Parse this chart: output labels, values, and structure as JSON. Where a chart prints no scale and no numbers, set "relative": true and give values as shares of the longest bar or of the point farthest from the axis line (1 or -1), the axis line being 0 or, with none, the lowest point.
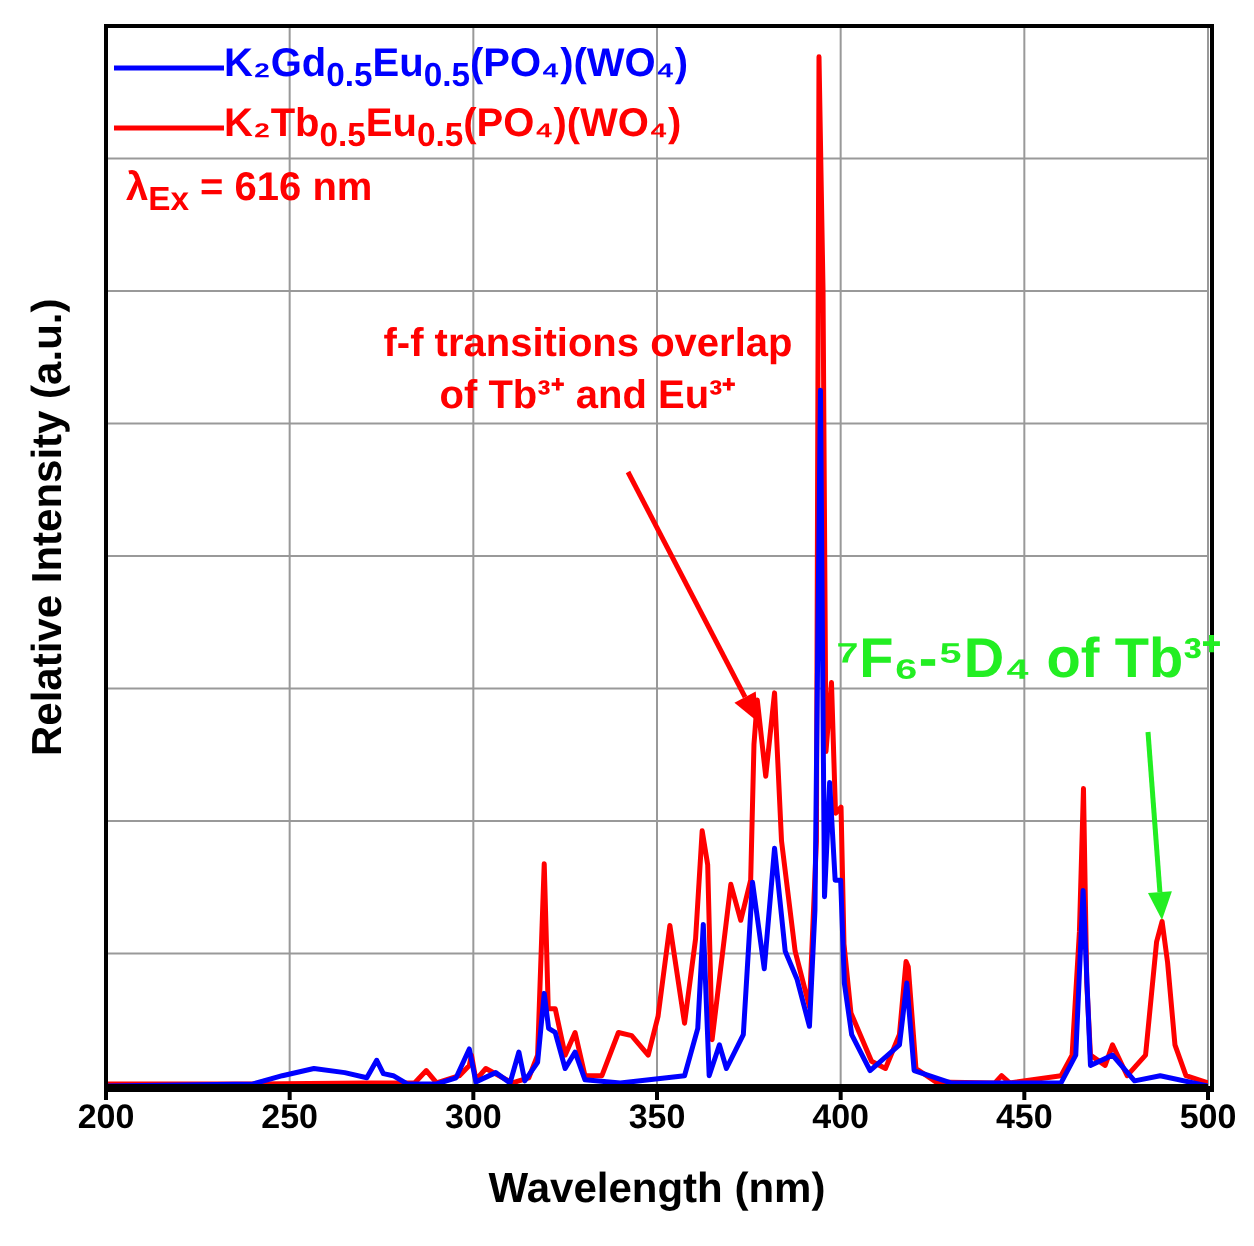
{
  "chart_data": {
    "type": "line",
    "xlabel": "Wavelength (nm)",
    "ylabel": "Relative Intensity (a.u.)",
    "relative": true,
    "xlim": [
      200,
      500
    ],
    "xticks": [
      200,
      250,
      300,
      350,
      400,
      450,
      500
    ],
    "grid": true,
    "legend": "top left",
    "marker": "none",
    "line_style": "solid",
    "series": [
      {
        "name": "K₂Gd$_{0.5}$Eu$_{0.5}$(PO₄)(WO₄)",
        "color": "#0000ff",
        "x": [
          200,
          240,
          248,
          256.6,
          265,
          271,
          273.7,
          275.5,
          278.2,
          282,
          290,
          295.3,
          298.9,
          300.7,
          306.1,
          310,
          312.4,
          314,
          317.5,
          319.3,
          320.5,
          322.3,
          325,
          327.7,
          330.4,
          340,
          357.5,
          361.1,
          362.6,
          364.2,
          367,
          368.9,
          373.5,
          376,
          379.2,
          382,
          384.9,
          388.1,
          391.5,
          393,
          394.5,
          395.6,
          397,
          398.5,
          400,
          401,
          403,
          408,
          416,
          418,
          420,
          430,
          460,
          464,
          466,
          468,
          474,
          480,
          487,
          500
        ],
        "values": [
          0,
          0.002,
          0.01,
          0.017,
          0.013,
          0.008,
          0.025,
          0.012,
          0.01,
          0.002,
          0.002,
          0.008,
          0.036,
          0.004,
          0.013,
          0.003,
          0.033,
          0.005,
          0.023,
          0.09,
          0.056,
          0.052,
          0.017,
          0.033,
          0.006,
          0.003,
          0.01,
          0.056,
          0.157,
          0.01,
          0.04,
          0.017,
          0.05,
          0.198,
          0.114,
          0.231,
          0.131,
          0.104,
          0.058,
          0.171,
          0.676,
          0.184,
          0.295,
          0.2,
          0.2,
          0.1,
          0.05,
          0.015,
          0.04,
          0.1,
          0.015,
          0.003,
          0.003,
          0.03,
          0.19,
          0.02,
          0.03,
          0.005,
          0.01,
          0
        ]
      },
      {
        "name": "K₂Tb$_{0.5}$Eu$_{0.5}$(PO₄)(WO₄)",
        "color": "#ff0000",
        "x": [
          200,
          240,
          270,
          284,
          287.2,
          290,
          296.2,
          298.9,
          299.5,
          300.7,
          303.4,
          310.6,
          315.1,
          317.5,
          319.3,
          320.4,
          322.3,
          325,
          327.7,
          330.4,
          335,
          339.5,
          343.1,
          347.6,
          350.3,
          353.5,
          357.5,
          360.5,
          362.3,
          363.8,
          365,
          370.1,
          372.8,
          375.5,
          376.4,
          377.3,
          379.6,
          382,
          383.9,
          387.6,
          391.5,
          393.4,
          394.1,
          395.2,
          396,
          397.5,
          398.6,
          400.1,
          400.9,
          402.8,
          408.4,
          412.2,
          416,
          417.8,
          418.4,
          420.5,
          425.9,
          442,
          443.8,
          446,
          460,
          463,
          465,
          466.1,
          467,
          468,
          472,
          474,
          478,
          483,
          486,
          487.5,
          489,
          491,
          494,
          500
        ],
        "values": [
          0.002,
          0.002,
          0.003,
          0.003,
          0.015,
          0.003,
          0.01,
          0.02,
          0.03,
          0.006,
          0.017,
          0.003,
          0.008,
          0.03,
          0.216,
          0.075,
          0.075,
          0.03,
          0.052,
          0.01,
          0.01,
          0.052,
          0.049,
          0.03,
          0.068,
          0.156,
          0.061,
          0.143,
          0.248,
          0.215,
          0.045,
          0.196,
          0.161,
          0.2,
          0.332,
          0.375,
          0.301,
          0.382,
          0.238,
          0.131,
          0.077,
          0.238,
          1.0,
          0.773,
          0.325,
          0.392,
          0.265,
          0.271,
          0.138,
          0.071,
          0.024,
          0.017,
          0.05,
          0.121,
          0.116,
          0.017,
          0.004,
          0.003,
          0.01,
          0.003,
          0.01,
          0.03,
          0.15,
          0.289,
          0.1,
          0.03,
          0.02,
          0.04,
          0.01,
          0.03,
          0.14,
          0.16,
          0.12,
          0.04,
          0.01,
          0.003
        ]
      }
    ],
    "annotations": [
      "f-f transitions overlap of Tb³⁺ and Eu³⁺",
      "⁷F₆-⁵D₄ of Tb³⁺",
      "λ$_{Ex}$ = 616 nm"
    ]
  }
}
